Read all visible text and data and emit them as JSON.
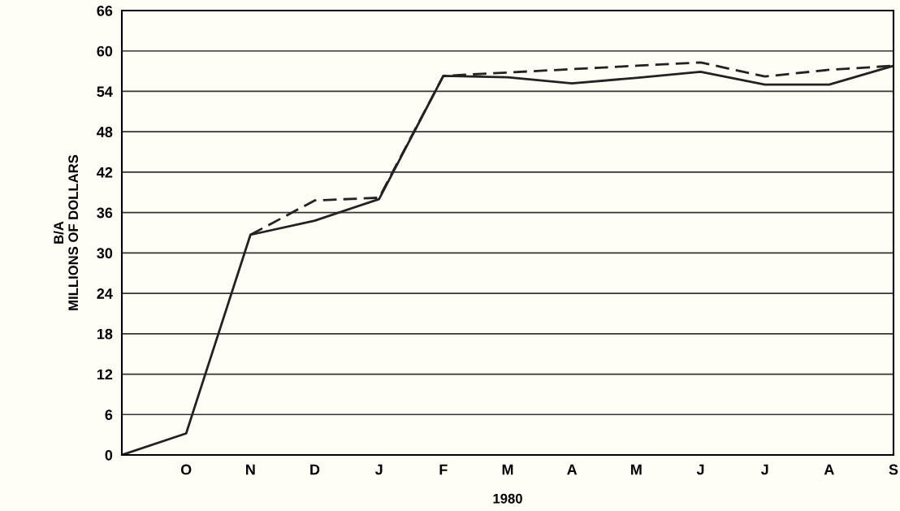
{
  "chart_data": {
    "type": "line",
    "xlabel": "1980",
    "ylabel": "B/A\nMILLIONS OF DOLLARS",
    "categories": [
      null,
      "O",
      "N",
      "D",
      "J",
      "F",
      "M",
      "A",
      "M",
      "J",
      "J",
      "A",
      "S"
    ],
    "series": [
      {
        "color": "#222222",
        "line_style": "solid",
        "values": [
          0,
          3.2,
          32.7,
          34.8,
          38.0,
          56.3,
          56.1,
          55.2,
          56.0,
          56.9,
          55.0,
          55.0,
          57.8
        ]
      },
      {
        "color": "#222222",
        "line_style": "dashed",
        "values": [
          null,
          null,
          32.7,
          37.8,
          38.2,
          56.3,
          56.8,
          57.3,
          57.8,
          58.3,
          56.2,
          57.2,
          57.8
        ]
      }
    ],
    "ylim": [
      0,
      66
    ],
    "yticks": [
      0,
      6,
      12,
      18,
      24,
      30,
      36,
      42,
      48,
      54,
      60,
      66
    ],
    "grid": "y",
    "marker": "none"
  }
}
